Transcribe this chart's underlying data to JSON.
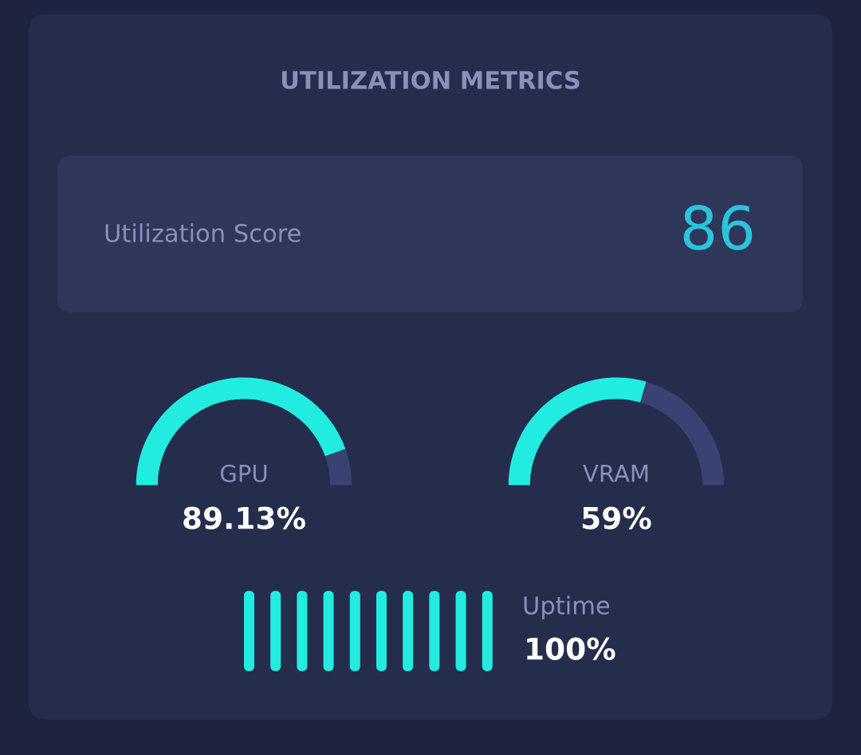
{
  "chart_data": [
    {
      "type": "other",
      "title": "UTILIZATION METRICS",
      "annotations": [
        "Utilization Score",
        "86"
      ]
    },
    {
      "type": "donut",
      "categories": [
        "GPU",
        null
      ],
      "values": [
        89.13,
        10.87
      ],
      "colors": [
        "#22ece0",
        "#3a4273"
      ],
      "value_labels": [
        "89.13%",
        null
      ]
    },
    {
      "type": "donut",
      "categories": [
        "VRAM",
        null
      ],
      "values": [
        59,
        41
      ],
      "colors": [
        "#22ece0",
        "#3a4273"
      ],
      "value_labels": [
        "59%",
        null
      ]
    },
    {
      "type": "other",
      "title": "Uptime",
      "annotations": [
        "100%"
      ]
    }
  ]
}
